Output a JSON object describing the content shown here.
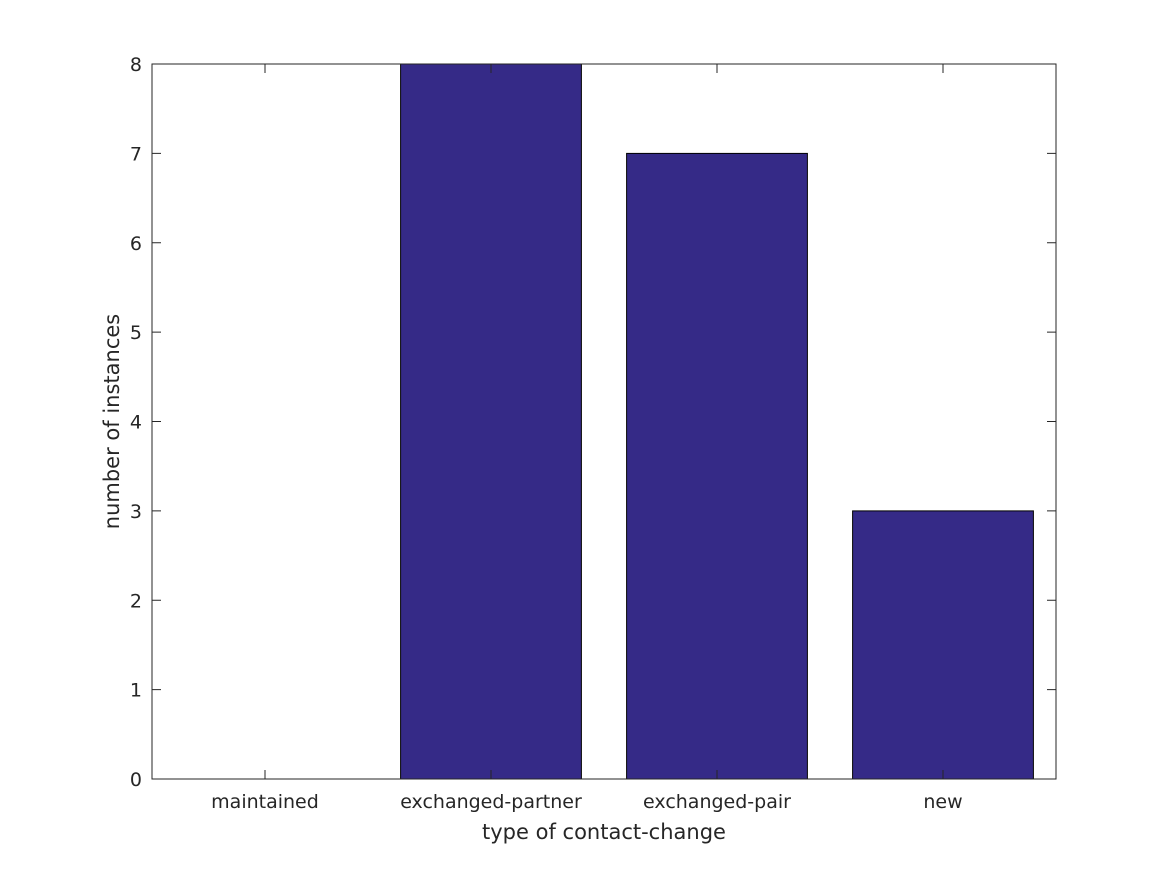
{
  "chart_data": {
    "type": "bar",
    "categories": [
      "maintained",
      "exchanged-partner",
      "exchanged-pair",
      "new"
    ],
    "values": [
      0,
      8,
      7,
      3
    ],
    "title": "",
    "xlabel": "type of contact-change",
    "ylabel": "number of instances",
    "ylim": [
      0,
      8
    ],
    "yticks": [
      0,
      1,
      2,
      3,
      4,
      5,
      6,
      7,
      8
    ],
    "grid": false,
    "bar_color": "#352A87",
    "edge_color": "#000000"
  }
}
